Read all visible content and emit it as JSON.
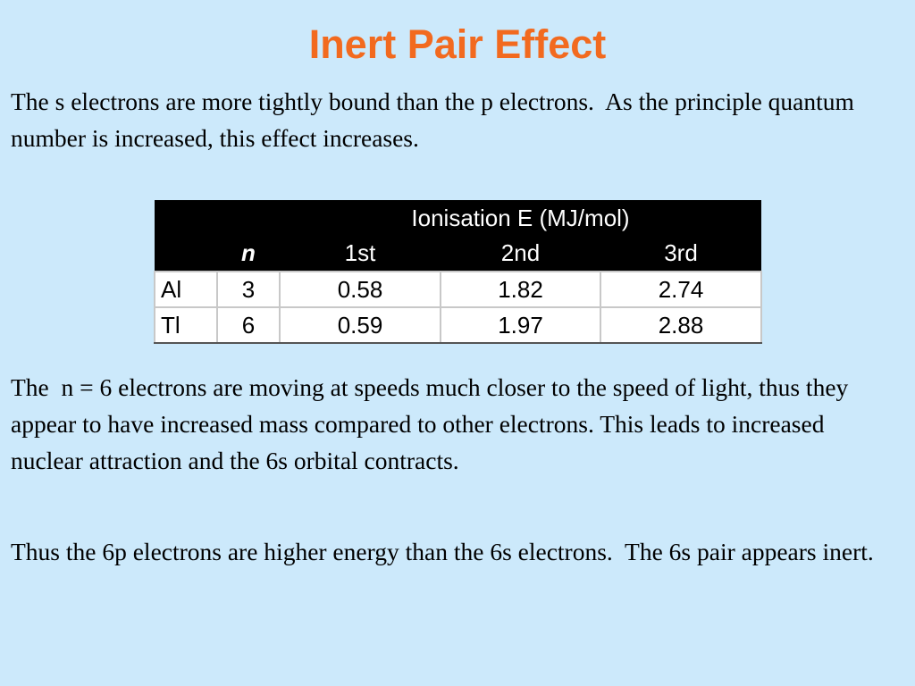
{
  "title": "Inert Pair Effect",
  "paragraphs": [
    "The s electrons are more tightly bound than the p electrons.  As the principle quantum number is increased, this effect increases.",
    "The  n = 6 electrons are moving at speeds much closer to the speed of light, thus they appear to have increased mass compared to other electrons. This leads to increased nuclear attraction and the 6s orbital contracts.",
    "Thus the 6p electrons are higher energy than the 6s electrons.  The 6s pair appears inert."
  ],
  "table": {
    "group_header": "Ionisation E (MJ/mol)",
    "columns": [
      "n",
      "1st",
      "2nd",
      "3rd"
    ],
    "rows": [
      [
        "Al",
        3,
        0.58,
        1.82,
        2.74
      ],
      [
        "Tl",
        6,
        0.59,
        1.97,
        2.88
      ]
    ]
  }
}
